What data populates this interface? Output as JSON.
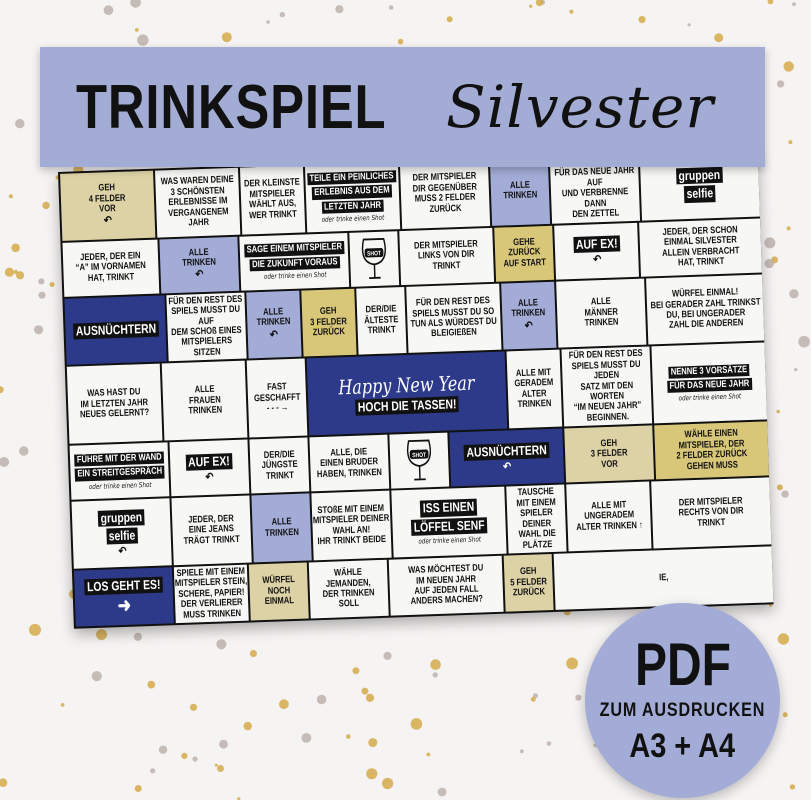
{
  "banner": {
    "title": "TRINKSPIEL",
    "script_title": "Silvester"
  },
  "badge": {
    "format": "PDF",
    "subtitle": "ZUM AUSDRUCKEN",
    "sizes": "A3 + A4"
  },
  "colors": {
    "banner": "#a3acd4",
    "navy": "#2d3a8a",
    "blue": "#a3acd6",
    "tan": "#ddd2a6",
    "yellow": "#d9c779",
    "gold_dots": "#d4a94a",
    "grey_dots": "#bdb2ac"
  },
  "board": {
    "rows": [
      [
        {
          "type": "t",
          "text": "GEH\n4 FELDER\nVOR",
          "icon": "curved-arrow-icon"
        },
        {
          "type": "w",
          "text": "WAS WAREN DEINE\n3 SCHÖNSTEN\nERLEBNISSE IM\nVERGANGENEM\nJAHR"
        },
        {
          "type": "w",
          "text": "DER KLEINSTE\nMITSPIELER\nWÄHLT AUS,\nWER TRINKT"
        },
        {
          "type": "w",
          "labels": [
            "TEILE EIN PEINLICHES",
            "ERLEBNIS AUS DEM",
            "LETZTEN JAHR"
          ],
          "note": "oder trinke einen Shot"
        },
        {
          "type": "w",
          "text": "DER MITSPIELER\nDIR GEGENÜBER\nMUSS 2 FELDER\nZURÜCK"
        },
        {
          "type": "b",
          "text": "ALLE\nTRINKEN"
        },
        {
          "type": "w",
          "text": "GRÖßTEN WUNSCH\nFÜR DAS NEUE JAHR AUF\nUND VERBRENNE DANN\nDEN ZETTEL"
        },
        {
          "type": "w",
          "labels": [
            "gruppen",
            "selfie"
          ],
          "big": true
        }
      ],
      [
        {
          "type": "w",
          "text": "JEDER, DER EIN\n“A” IM VORNAMEN\nHAT, TRINKT"
        },
        {
          "type": "b",
          "text": "ALLE\nTRINKEN",
          "icon": "curved-arrow-icon"
        },
        {
          "type": "w",
          "labels": [
            "SAGE EINEM MITSPIELER",
            "DIE ZUKUNFT VORAUS"
          ],
          "note": "oder trinke einen Shot"
        },
        {
          "type": "w",
          "shot": "SHOT"
        },
        {
          "type": "w",
          "text": "DER MITSPIELER\nLINKS VON DIR\nTRINKT"
        },
        {
          "type": "y",
          "text": "GEHE\nZURÜCK\nAUF START"
        },
        {
          "type": "w",
          "labels": [
            "AUF EX!"
          ],
          "big": true,
          "icon": "curved-arrow-icon"
        },
        {
          "type": "w",
          "text": "JEDER, DER SCHON\nEINMAL SILVESTER\nALLEIN VERBRACHT\nHAT, TRINKT"
        }
      ],
      [
        {
          "type": "n",
          "labels": [
            "AUSNÜCHTERN"
          ],
          "big": true
        },
        {
          "type": "w",
          "text": "FÜR DEN REST DES\nSPIELS MUSST DU AUF\nDEM SCHOß EINES\nMITSPIELERS SITZEN"
        },
        {
          "type": "b",
          "text": "ALLE\nTRINKEN",
          "icon": "curved-arrow-icon"
        },
        {
          "type": "y",
          "text": "GEH\n3 FELDER\nZURÜCK"
        },
        {
          "type": "w",
          "text": "DER/DIE\nÄLTESTE\nTRINKT"
        },
        {
          "type": "w",
          "text": "FÜR DEN REST DES\nSPIELS MUSST DU SO\nTUN ALS WÜRDEST DU\nBLEIGIEßEN"
        },
        {
          "type": "b",
          "text": "ALLE\nTRINKEN",
          "icon": "curved-arrow-icon"
        },
        {
          "type": "w",
          "text": "ALLE\nMÄNNER\nTRINKEN"
        },
        {
          "type": "w",
          "text": "WÜRFEL EINMAL!\nBEI GERADER ZAHL TRINKST\nDU, BEI UNGERADER\nZAHL DIE ANDEREN"
        }
      ],
      [
        {
          "type": "w",
          "text": "WAS HAST DU\nIM LETZTEN JAHR\nNEUES GELERNT?"
        },
        {
          "type": "w",
          "text": "ALLE\nFRAUEN\nTRINKEN"
        },
        {
          "type": "w",
          "text": "FAST\nGESCHAFFT\n- - - →"
        },
        {
          "type": "n",
          "hny": "Happy New Year",
          "labels": [
            "HOCH DIE TASSEN!"
          ],
          "big": true
        },
        {
          "type": "w",
          "text": "ALLE MIT\nGERADEM\nALTER\nTRINKEN"
        },
        {
          "type": "w",
          "text": "FÜR DEN REST DES\nSPIELS MUSST DU JEDEN\nSATZ MIT DEN WORTEN\n“IM NEUEN JAHR”\nBEGINNEN."
        },
        {
          "type": "w",
          "labels": [
            "NENNE 3 VORSÄTZE",
            "FÜR DAS NEUE JAHR"
          ],
          "note": "oder trinke einen Shot"
        }
      ],
      [
        {
          "type": "w",
          "labels": [
            "FÜHRE MIT DER WAND",
            "EIN STREITGESPRÄCH"
          ],
          "note": "oder trinke einen Shot"
        },
        {
          "type": "w",
          "labels": [
            "AUF EX!"
          ],
          "big": true,
          "icon": "curved-arrow-icon"
        },
        {
          "type": "w",
          "text": "DER/DIE\nJÜNGSTE\nTRINKT"
        },
        {
          "type": "w",
          "text": "ALLE, DIE\nEINEN BRUDER\nHABEN, TRINKEN"
        },
        {
          "type": "w",
          "shot": "SHOT"
        },
        {
          "type": "n",
          "labels": [
            "AUSNÜCHTERN"
          ],
          "big": true,
          "icon": "curved-arrow-icon"
        },
        {
          "type": "t",
          "text": "GEH\n3 FELDER\nVOR"
        },
        {
          "type": "y",
          "text": "WÄHLE EINEN\nMITSPIELER, DER\n2 FELDER ZURÜCK\nGEHEN MUSS"
        }
      ],
      [
        {
          "type": "w",
          "labels": [
            "gruppen",
            "selfie"
          ],
          "big": true,
          "icon": "curved-arrow-icon"
        },
        {
          "type": "w",
          "text": "JEDER, DER\nEINE JEANS\nTRÄGT TRINKT"
        },
        {
          "type": "b",
          "text": "ALLE\nTRINKEN"
        },
        {
          "type": "w",
          "text": "STOßE MIT EINEM\nMITSPIELER DEINER\nWAHL AN!\nIHR TRINKT BEIDE"
        },
        {
          "type": "w",
          "labels": [
            "ISS EINEN",
            "LÖFFEL SENF"
          ],
          "big": true,
          "note": "oder trinke einen Shot"
        },
        {
          "type": "w",
          "text": "TAUSCHE\nMIT EINEM\nSPIELER DEINER\nWAHL DIE\nPLÄTZE"
        },
        {
          "type": "w",
          "text": "ALLE MIT\nUNGERADEM\nALTER TRINKEN ↑"
        },
        {
          "type": "w",
          "text": "DER MITSPIELER\nRECHTS VON DIR\nTRINKT"
        }
      ],
      [
        {
          "type": "n",
          "labels": [
            "LOS GEHT ES!"
          ],
          "big": true,
          "icon": "arrow-right-icon"
        },
        {
          "type": "w",
          "text": "SPIELE MIT EINEM\nMITSPIELER STEIN,\nSCHERE, PAPIER!\nDER VERLIERER\nMUSS TRINKEN"
        },
        {
          "type": "t",
          "text": "WÜRFEL\nNOCH\nEINMAL"
        },
        {
          "type": "w",
          "text": "WÄHLE\nJEMANDEN,\nDER TRINKEN\nSOLL"
        },
        {
          "type": "w",
          "text": "WAS MÖCHTEST DU\nIM NEUEN JAHR\nAUF JEDEN FALL\nANDERS MACHEN?"
        },
        {
          "type": "t",
          "text": "GEH\n5 FELDER\nZURÜCK"
        },
        {
          "type": "w",
          "text": "                    IE,"
        }
      ]
    ]
  }
}
